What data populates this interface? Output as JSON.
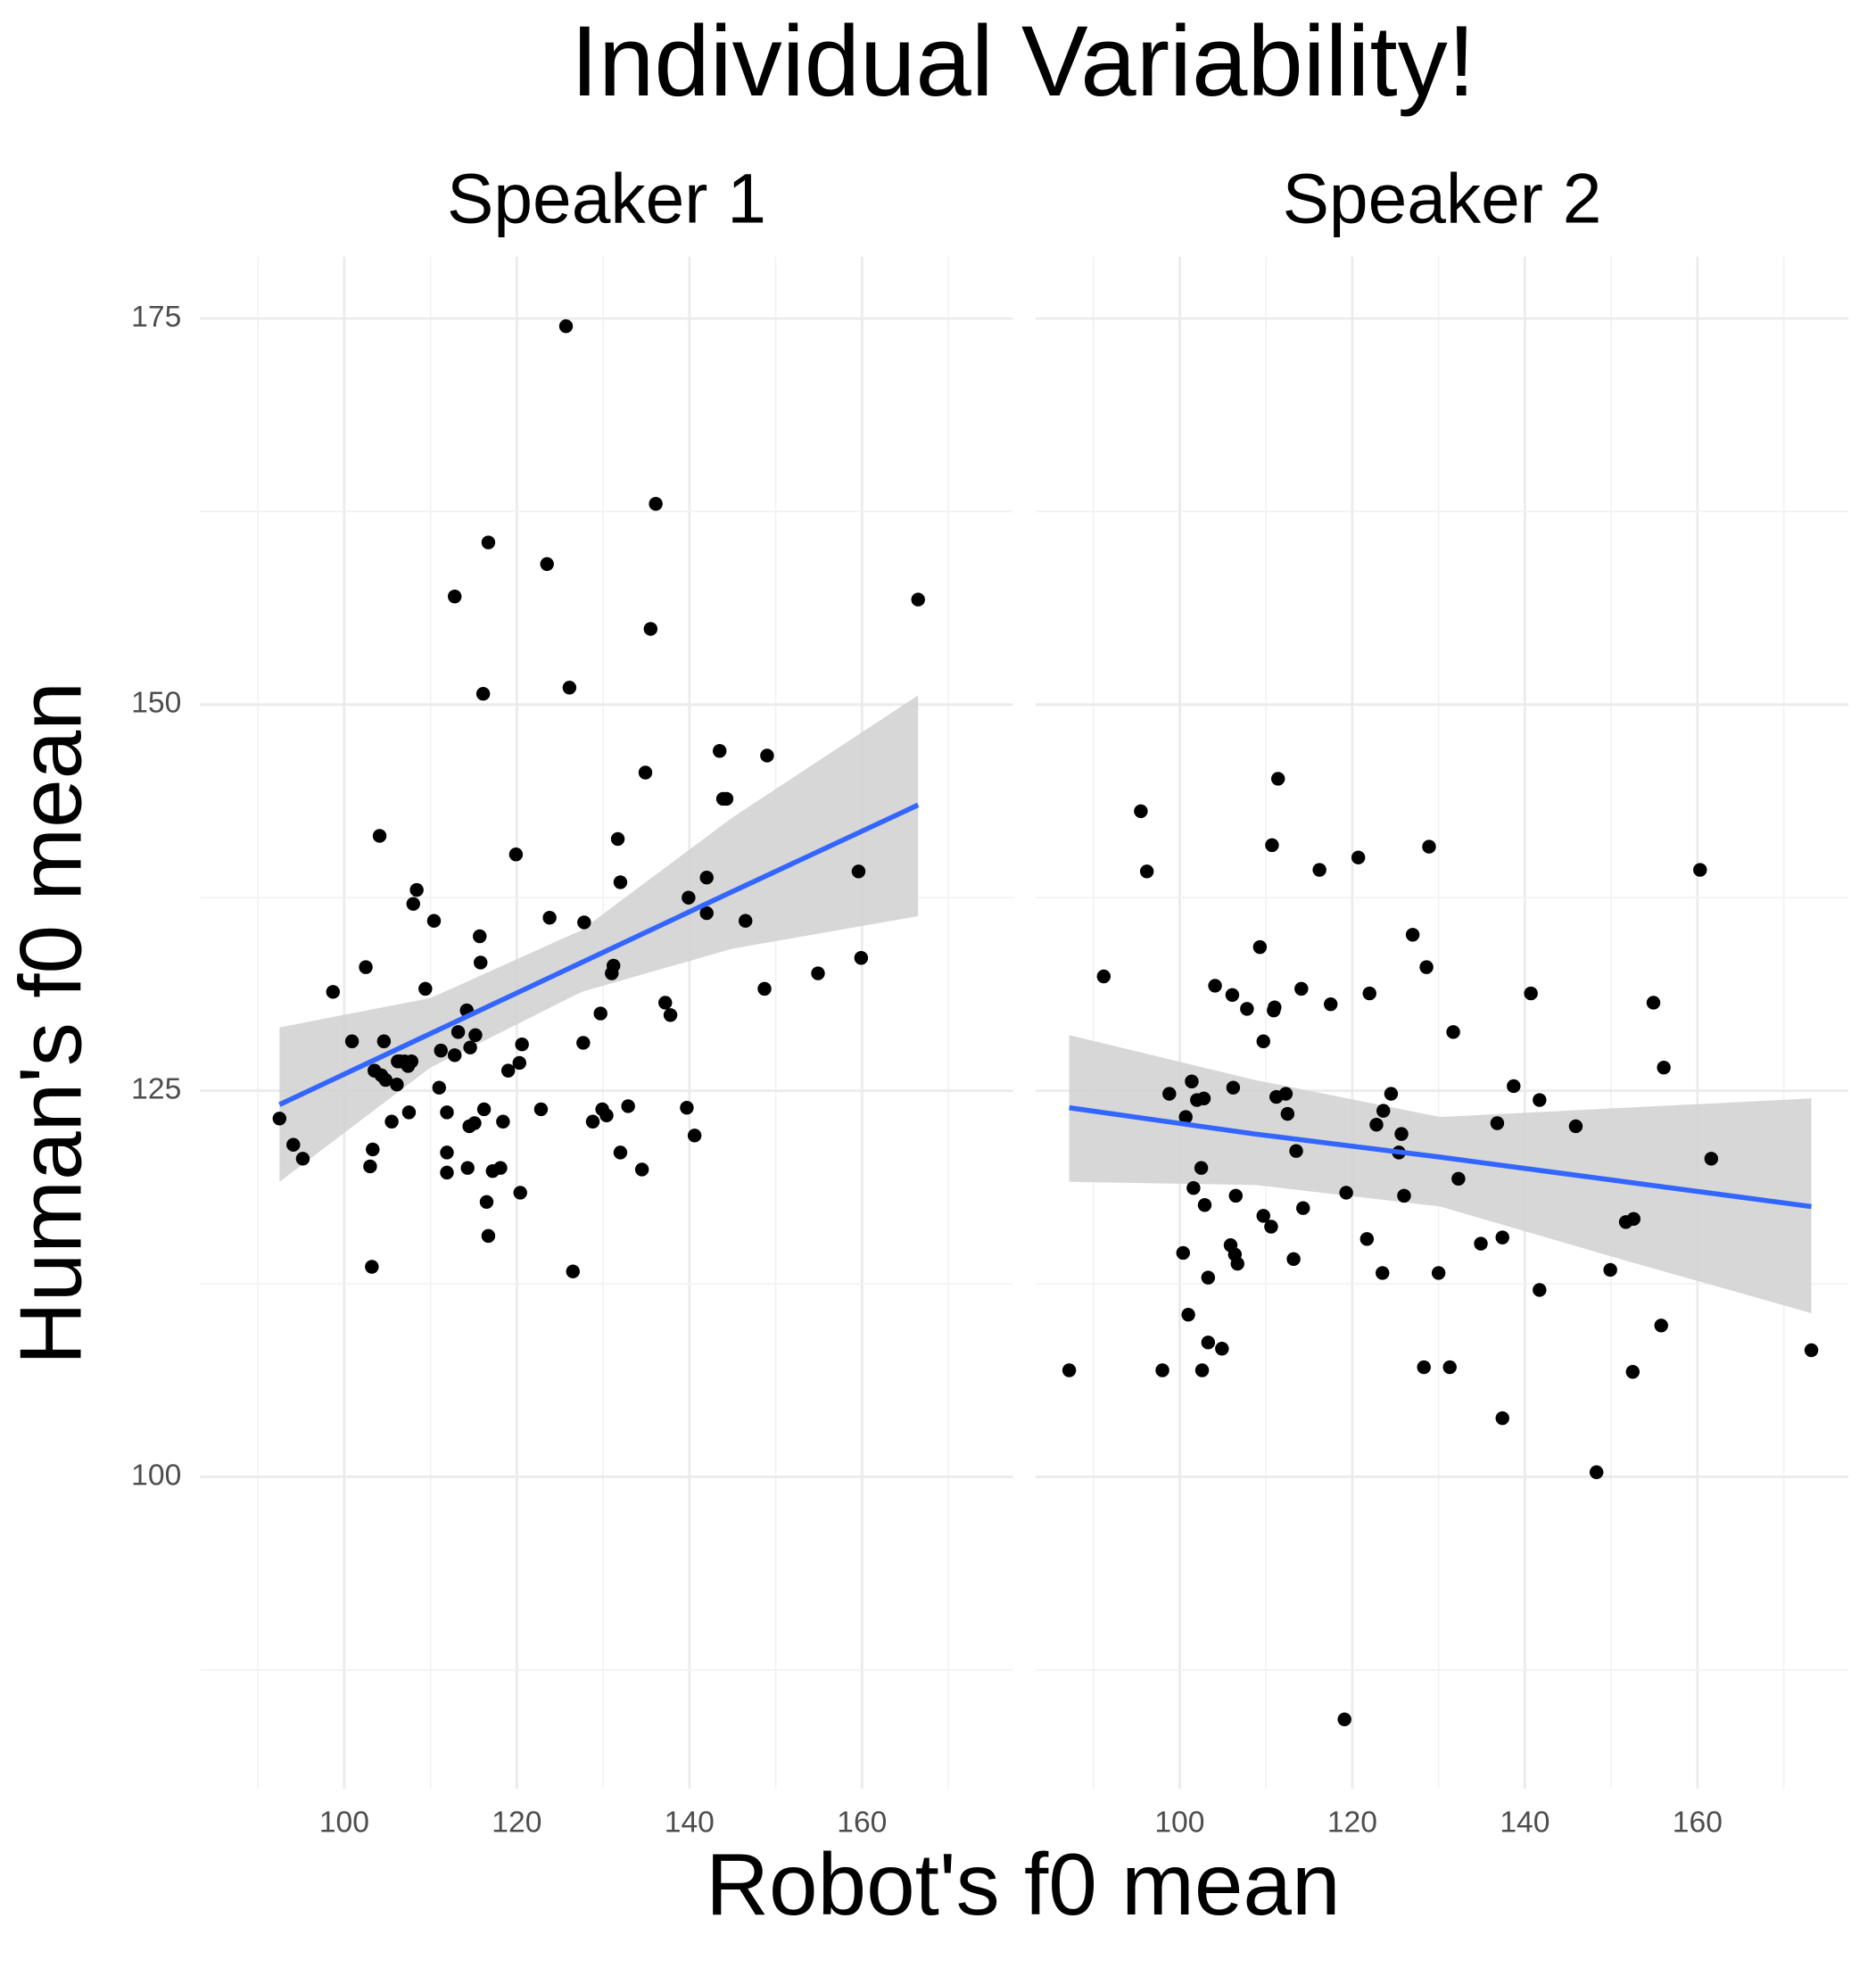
{
  "chart_data": {
    "type": "scatter",
    "title": "Individual Variability!",
    "xlabel": "Robot's f0 mean",
    "ylabel": "Human's f0 mean",
    "xlim": [
      83.3,
      177.5
    ],
    "ylim": [
      79.8,
      179
    ],
    "xticks": [
      100,
      120,
      140,
      160
    ],
    "yticks": [
      100,
      125,
      150,
      175
    ],
    "grid": true,
    "point_color": "#000000",
    "fit_color": "#3366ff",
    "ribbon_color": "#d3d3d3",
    "panels": [
      {
        "title": "Speaker 1",
        "x": [
          92.5,
          94.1,
          95.2,
          98.7,
          100.9,
          102.5,
          103.0,
          103.3,
          103.5,
          103.2,
          104.1,
          104.3,
          104.6,
          104.8,
          105.5,
          106.1,
          106.2,
          106.5,
          107.0,
          107.4,
          107.5,
          107.8,
          108.0,
          108.4,
          109.4,
          110.4,
          111.0,
          111.2,
          111.9,
          111.9,
          111.9,
          112.8,
          112.8,
          113.2,
          114.2,
          114.3,
          114.5,
          114.6,
          115.1,
          115.2,
          115.7,
          115.8,
          116.1,
          116.2,
          116.5,
          116.7,
          116.7,
          117.2,
          118.1,
          118.4,
          119.0,
          119.9,
          120.3,
          120.4,
          120.6,
          122.8,
          123.5,
          123.8,
          125.7,
          126.1,
          126.5,
          127.7,
          127.8,
          128.8,
          129.7,
          129.9,
          130.4,
          131.0,
          131.2,
          131.7,
          132.0,
          132.0,
          132.9,
          134.5,
          134.9,
          135.5,
          136.1,
          137.2,
          137.8,
          139.7,
          139.9,
          140.6,
          142.0,
          142.0,
          143.5,
          143.9,
          144.3,
          146.5,
          148.7,
          149.0,
          154.9,
          159.6,
          159.9,
          166.5
        ],
        "values": [
          123.2,
          121.5,
          120.6,
          131.4,
          128.2,
          133.0,
          120.1,
          121.2,
          126.3,
          113.6,
          141.5,
          126.0,
          128.2,
          125.7,
          123.0,
          125.4,
          126.9,
          126.9,
          126.9,
          126.6,
          123.6,
          126.9,
          137.1,
          138.0,
          131.6,
          136.0,
          125.2,
          127.6,
          123.6,
          121.0,
          119.7,
          127.3,
          157.0,
          128.8,
          130.2,
          120.0,
          122.7,
          127.8,
          122.9,
          128.6,
          135.0,
          133.3,
          150.7,
          123.8,
          117.8,
          115.6,
          160.5,
          119.8,
          120.0,
          123.0,
          126.3,
          140.3,
          126.8,
          118.4,
          128.0,
          123.8,
          159.1,
          136.2,
          174.5,
          151.1,
          113.3,
          128.1,
          135.9,
          123.0,
          130.0,
          123.8,
          123.4,
          132.6,
          133.1,
          141.3,
          138.5,
          121.0,
          124.0,
          119.9,
          145.6,
          154.9,
          163.0,
          130.7,
          129.9,
          123.9,
          137.5,
          122.1,
          136.5,
          138.8,
          147.0,
          143.9,
          143.9,
          136.0,
          131.6,
          146.7,
          132.6,
          139.2,
          133.6,
          156.8
        ],
        "fit": {
          "x": [
            92.5,
            110,
            127.5,
            145,
            166.5
          ],
          "y": [
            124.1,
            128.7,
            133.3,
            137.9,
            143.5
          ],
          "lower": [
            119.1,
            126.5,
            131.4,
            134.2,
            136.3
          ],
          "upper": [
            129.1,
            131.0,
            135.4,
            142.7,
            150.6
          ]
        }
      },
      {
        "title": "Speaker 2",
        "x": [
          87.2,
          91.2,
          95.5,
          96.2,
          98.0,
          98.8,
          100.4,
          100.7,
          101.0,
          101.4,
          101.6,
          102.0,
          102.5,
          102.6,
          102.8,
          102.9,
          103.3,
          103.3,
          104.1,
          104.9,
          105.9,
          106.1,
          106.2,
          106.4,
          106.5,
          106.7,
          107.8,
          109.3,
          109.7,
          109.7,
          110.6,
          110.7,
          110.9,
          111.0,
          111.2,
          111.4,
          112.3,
          112.5,
          113.2,
          113.5,
          114.1,
          114.3,
          116.2,
          117.5,
          119.3,
          120.7,
          121.7,
          122.0,
          122.8,
          123.5,
          123.6,
          124.5,
          125.4,
          125.7,
          126.0,
          127.0,
          128.3,
          128.6,
          128.9,
          130.0,
          131.3,
          131.7,
          132.3,
          134.9,
          136.8,
          137.4,
          137.4,
          138.7,
          140.7,
          141.7,
          141.7,
          145.9,
          148.3,
          149.9,
          151.7,
          152.6,
          152.5,
          154.9,
          155.8,
          156.1,
          160.3,
          161.6,
          173.2,
          119.1
        ],
        "values": [
          106.9,
          132.4,
          143.1,
          139.2,
          106.9,
          124.8,
          114.5,
          123.3,
          110.5,
          125.6,
          118.7,
          124.4,
          120.0,
          106.9,
          124.5,
          117.6,
          112.9,
          108.7,
          131.8,
          108.3,
          115.0,
          131.2,
          125.2,
          114.4,
          118.2,
          113.8,
          130.3,
          134.3,
          128.2,
          116.9,
          116.2,
          140.9,
          130.2,
          130.4,
          124.6,
          145.2,
          124.8,
          123.5,
          114.1,
          121.1,
          131.6,
          117.4,
          139.3,
          130.6,
          118.4,
          140.1,
          115.4,
          131.3,
          122.8,
          113.2,
          123.7,
          124.8,
          121.0,
          122.2,
          118.2,
          135.1,
          107.1,
          133.0,
          140.8,
          113.2,
          107.1,
          128.8,
          119.3,
          115.1,
          122.9,
          115.5,
          103.8,
          125.3,
          131.3,
          124.4,
          112.1,
          122.7,
          100.3,
          113.4,
          116.5,
          116.7,
          106.8,
          130.7,
          109.8,
          126.5,
          139.3,
          120.6,
          108.2,
          84.3
        ],
        "fit": {
          "x": [
            87.2,
            108.7,
            130.2,
            151.7,
            173.2
          ],
          "y": [
            123.9,
            122.2,
            120.7,
            119.1,
            117.5
          ],
          "lower": [
            119.1,
            118.9,
            117.5,
            114.0,
            110.6
          ],
          "upper": [
            128.6,
            125.7,
            123.3,
            123.9,
            124.5
          ]
        }
      }
    ]
  }
}
